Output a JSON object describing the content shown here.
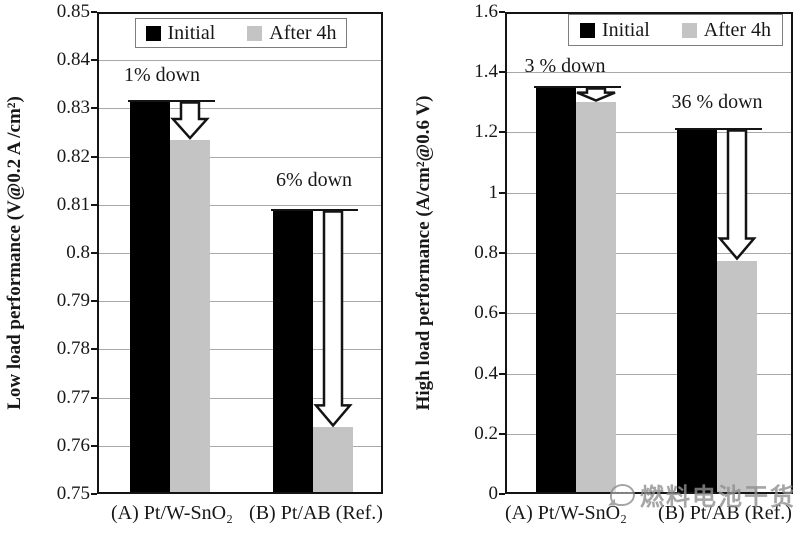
{
  "watermark": {
    "text": "燃料电池干货",
    "icon": "chat-bubble-icon",
    "color": "#8f8f8f"
  },
  "legend": {
    "position": "top",
    "items": [
      {
        "label": "Initial",
        "color": "#000000"
      },
      {
        "label": "After 4h",
        "color": "#c4c4c4"
      }
    ]
  },
  "chart_data": [
    {
      "type": "bar",
      "id": "low-load",
      "title": "",
      "xlabel": "",
      "ylabel": "Low load performance (V@0.2 A /cm²)",
      "ylim": [
        0.75,
        0.85
      ],
      "ytick_step": 0.01,
      "ytick_labels": [
        "0.85",
        "0.84",
        "0.83",
        "0.82",
        "0.81",
        "0.8",
        "0.79",
        "0.78",
        "0.77",
        "0.76",
        "0.75"
      ],
      "grid": true,
      "legend_position": "top-center-inside",
      "categories": [
        "(A) Pt/W-SnO₂",
        "(B) Pt/AB (Ref.)"
      ],
      "series": [
        {
          "name": "Initial",
          "color": "#000000",
          "values": [
            0.8315,
            0.809
          ]
        },
        {
          "name": "After 4h",
          "color": "#c4c4c4",
          "values": [
            0.8235,
            0.764
          ]
        }
      ],
      "annotations": [
        {
          "text": "1% down",
          "category": 0
        },
        {
          "text": "6% down",
          "category": 1
        }
      ]
    },
    {
      "type": "bar",
      "id": "high-load",
      "title": "",
      "xlabel": "",
      "ylabel": "High load performance (A/cm²@0.6 V)",
      "ylim": [
        0,
        1.6
      ],
      "ytick_step": 0.2,
      "ytick_labels": [
        "1.6",
        "1.4",
        "1.2",
        "1",
        "0.8",
        "0.6",
        "0.4",
        "0.2",
        "0"
      ],
      "grid": true,
      "legend_position": "top-right-inside",
      "categories": [
        "(A) Pt/W-SnO₂",
        "(B) Pt/AB (Ref.)"
      ],
      "series": [
        {
          "name": "Initial",
          "color": "#000000",
          "values": [
            1.35,
            1.21
          ]
        },
        {
          "name": "After 4h",
          "color": "#c4c4c4",
          "values": [
            1.3,
            0.775
          ]
        }
      ],
      "annotations": [
        {
          "text": "3 % down",
          "category": 0
        },
        {
          "text": "36 % down",
          "category": 1
        }
      ]
    }
  ]
}
